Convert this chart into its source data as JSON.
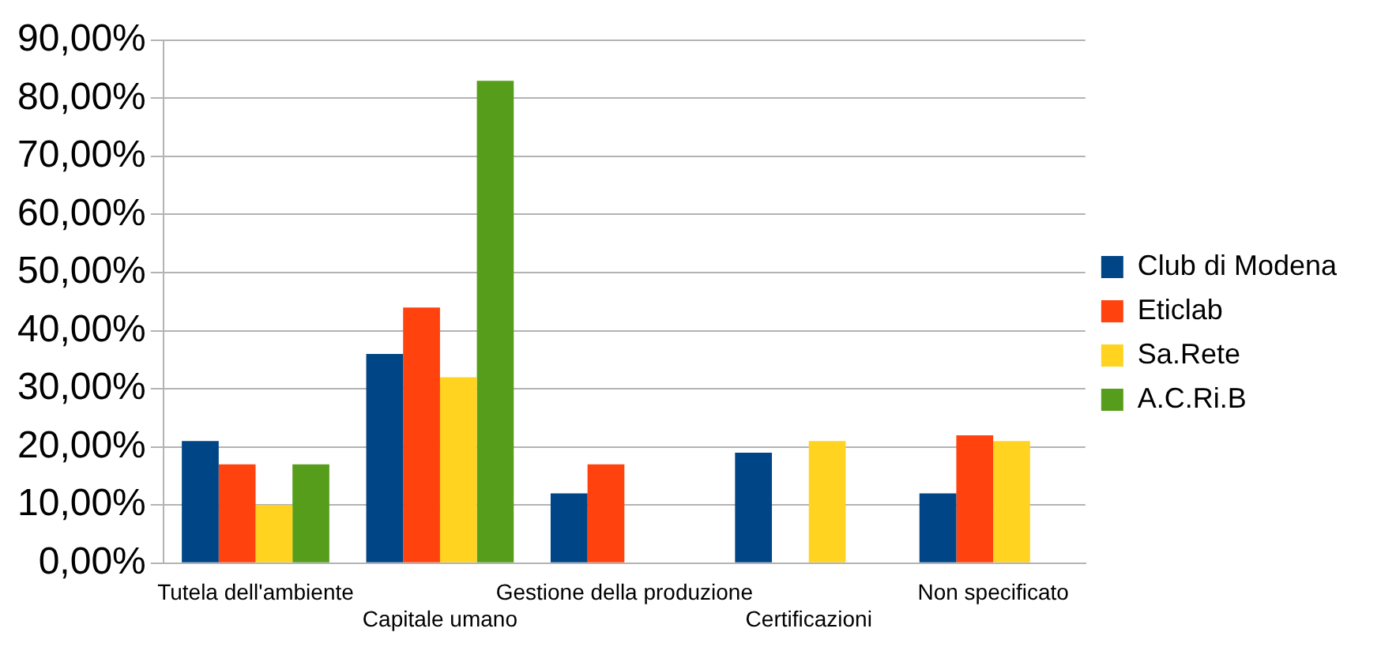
{
  "chart_data": {
    "type": "bar",
    "categories": [
      "Tutela dell'ambiente",
      "Capitale umano",
      "Gestione della produzione",
      "Certificazioni",
      "Non specificato"
    ],
    "series": [
      {
        "name": "Club di Modena",
        "color": "#004586",
        "values": [
          21,
          36,
          12,
          19,
          12
        ]
      },
      {
        "name": "Eticlab",
        "color": "#ff420e",
        "values": [
          17,
          44,
          17,
          0,
          22
        ]
      },
      {
        "name": "Sa.Rete",
        "color": "#ffd320",
        "values": [
          10,
          32,
          0,
          21,
          21
        ]
      },
      {
        "name": "A.C.Ri.B",
        "color": "#579d1c",
        "values": [
          17,
          83,
          0,
          0,
          0
        ]
      }
    ],
    "ylim": [
      0,
      90
    ],
    "yticks": [
      {
        "value": 0,
        "label": "0,00%"
      },
      {
        "value": 10,
        "label": "10,00%"
      },
      {
        "value": 20,
        "label": "20,00%"
      },
      {
        "value": 30,
        "label": "30,00%"
      },
      {
        "value": 40,
        "label": "40,00%"
      },
      {
        "value": 50,
        "label": "50,00%"
      },
      {
        "value": 60,
        "label": "60,00%"
      },
      {
        "value": 70,
        "label": "70,00%"
      },
      {
        "value": 80,
        "label": "80,00%"
      },
      {
        "value": 90,
        "label": "90,00%"
      }
    ],
    "grid": "y",
    "legend": "right"
  }
}
